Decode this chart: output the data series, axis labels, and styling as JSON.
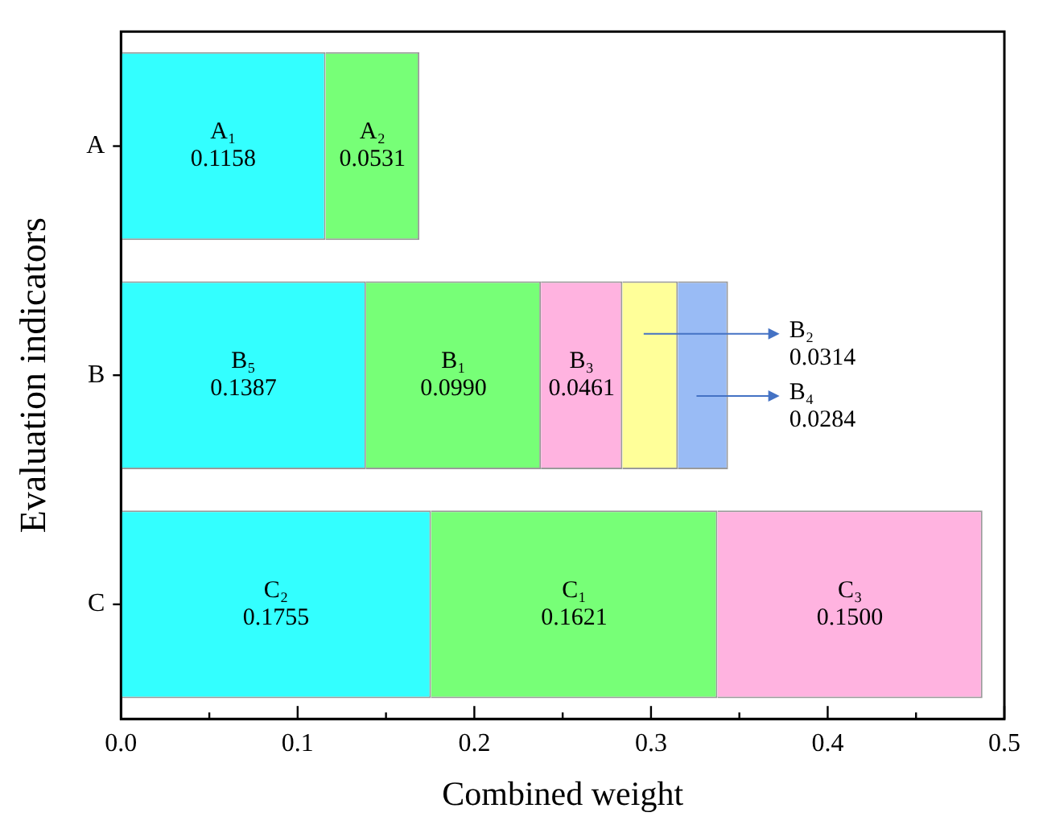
{
  "chart_data": {
    "type": "bar",
    "orientation": "horizontal",
    "stacked": true,
    "xlabel": "Combined weight",
    "ylabel": "Evaluation indicators",
    "categories": [
      "A",
      "B",
      "C"
    ],
    "series": [
      {
        "color": "#33ffff",
        "values": [
          0.1158,
          0.1387,
          0.1755
        ],
        "value_labels": [
          "A₁\n0.1158",
          "B₅\n0.1387",
          "C₂\n0.1755"
        ]
      },
      {
        "color": "#77ff77",
        "values": [
          0.0531,
          0.099,
          0.1621
        ],
        "value_labels": [
          "A₂\n0.0531",
          "B₁\n0.0990",
          "C₁\n0.1621"
        ]
      },
      {
        "color": "#ffb3e0",
        "values": [
          null,
          0.0461,
          0.15
        ],
        "value_labels": [
          null,
          "B₃\n0.0461",
          "C₃\n0.1500"
        ]
      },
      {
        "color": "#ffff99",
        "values": [
          null,
          0.0314,
          null
        ],
        "value_labels": [
          null,
          "B₂\n0.0314",
          null
        ]
      },
      {
        "color": "#99bbf5",
        "values": [
          null,
          0.0284,
          null
        ],
        "value_labels": [
          null,
          "B₄\n0.0284",
          null
        ]
      }
    ],
    "xlim": [
      0,
      0.5
    ],
    "xticks": [
      {
        "value": 0,
        "label": "0.0"
      },
      {
        "value": 0.05,
        "label": null
      },
      0.1,
      {
        "value": 0.15,
        "label": null
      },
      0.2,
      {
        "value": 0.25,
        "label": null
      },
      0.3,
      {
        "value": 0.35,
        "label": null
      },
      0.4,
      {
        "value": 0.45,
        "label": null
      },
      0.5
    ],
    "grid": false,
    "legend": false
  }
}
